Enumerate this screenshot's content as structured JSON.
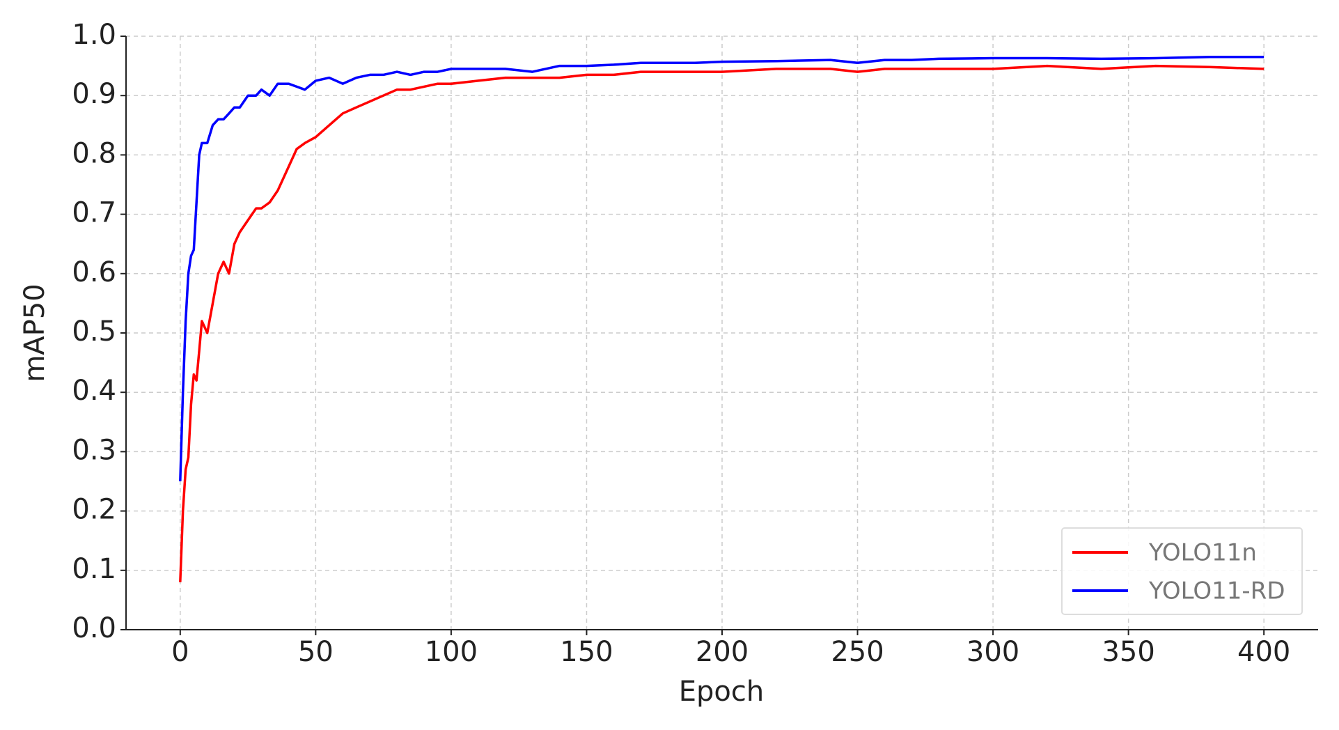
{
  "chart_data": {
    "type": "line",
    "x_label": "Epoch",
    "y_label": "mAP50",
    "x": [
      0,
      1,
      2,
      3,
      4,
      5,
      6,
      7,
      8,
      10,
      12,
      14,
      16,
      18,
      20,
      22,
      25,
      28,
      30,
      33,
      36,
      40,
      43,
      46,
      50,
      55,
      60,
      65,
      70,
      75,
      80,
      85,
      90,
      95,
      100,
      110,
      120,
      130,
      140,
      150,
      160,
      170,
      180,
      190,
      200,
      220,
      240,
      250,
      260,
      270,
      280,
      300,
      320,
      340,
      360,
      380,
      400
    ],
    "series": [
      {
        "name": "YOLO11n",
        "color": "#ff0000",
        "values": [
          0.08,
          0.2,
          0.27,
          0.29,
          0.38,
          0.43,
          0.42,
          0.47,
          0.52,
          0.5,
          0.55,
          0.6,
          0.62,
          0.6,
          0.65,
          0.67,
          0.69,
          0.71,
          0.71,
          0.72,
          0.74,
          0.78,
          0.81,
          0.82,
          0.83,
          0.85,
          0.87,
          0.88,
          0.89,
          0.9,
          0.91,
          0.91,
          0.915,
          0.92,
          0.92,
          0.925,
          0.93,
          0.93,
          0.93,
          0.935,
          0.935,
          0.94,
          0.94,
          0.94,
          0.94,
          0.945,
          0.945,
          0.94,
          0.945,
          0.945,
          0.945,
          0.945,
          0.95,
          0.945,
          0.95,
          0.948,
          0.945
        ]
      },
      {
        "name": "YOLO11-RD",
        "color": "#0000ff",
        "values": [
          0.25,
          0.4,
          0.52,
          0.6,
          0.63,
          0.64,
          0.72,
          0.8,
          0.82,
          0.82,
          0.85,
          0.86,
          0.86,
          0.87,
          0.88,
          0.88,
          0.9,
          0.9,
          0.91,
          0.9,
          0.92,
          0.92,
          0.915,
          0.91,
          0.925,
          0.93,
          0.92,
          0.93,
          0.935,
          0.935,
          0.94,
          0.935,
          0.94,
          0.94,
          0.945,
          0.945,
          0.945,
          0.94,
          0.95,
          0.95,
          0.952,
          0.955,
          0.955,
          0.955,
          0.957,
          0.958,
          0.96,
          0.955,
          0.96,
          0.96,
          0.962,
          0.963,
          0.963,
          0.962,
          0.963,
          0.965,
          0.965
        ]
      }
    ],
    "xlim": [
      -20,
      420
    ],
    "xticks": [
      0,
      50,
      100,
      150,
      200,
      250,
      300,
      350,
      400
    ],
    "ylim": [
      0,
      1
    ],
    "yticks": [
      {
        "value": 0,
        "label": "0.0"
      },
      0.1,
      0.2,
      0.3,
      0.4,
      0.5,
      0.6,
      0.7,
      0.8,
      0.9,
      {
        "value": 1,
        "label": "1.0"
      }
    ],
    "grid": true,
    "legend": "lower right"
  }
}
